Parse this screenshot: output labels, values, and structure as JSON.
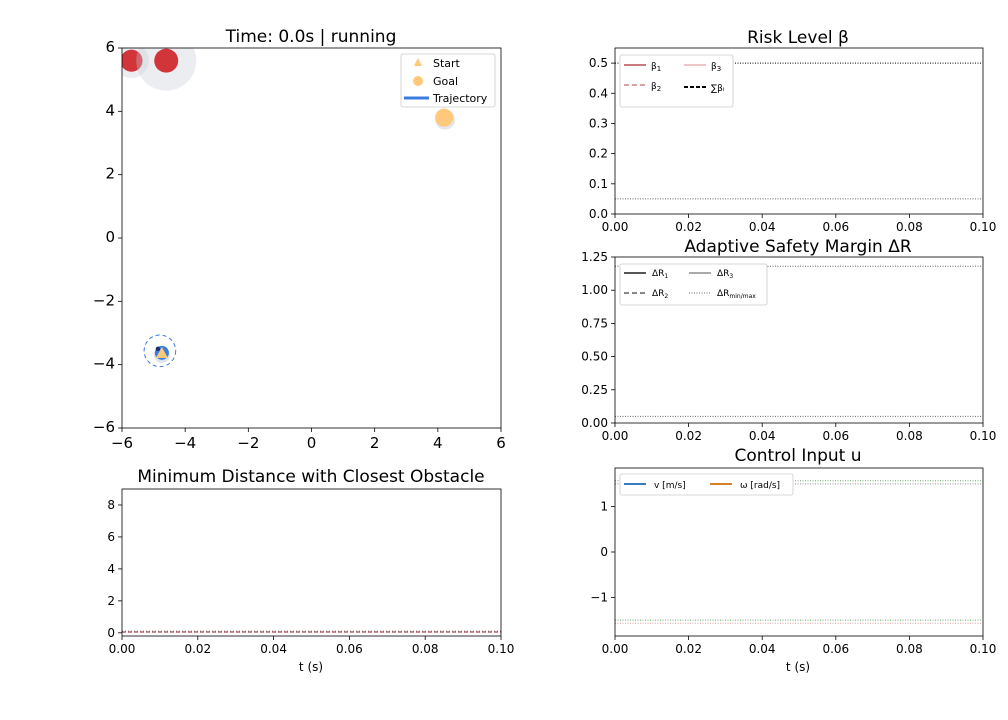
{
  "colors": {
    "beta1": "#c97a7e",
    "beta2": "#d9a3a5",
    "beta3": "#efc6c8",
    "dr1": "#555555",
    "dr2": "#888888",
    "dr3": "#aaaaaa",
    "v": "#3a7cc4",
    "omega": "#d4822a",
    "obstacle": "#d1353a",
    "obstacle_halo": "#c9ccd6",
    "goal": "#ffc87a",
    "trajectory": "#3b7ddd"
  },
  "chart_data": [
    {
      "id": "trajectory",
      "type": "scatter",
      "title": "Time: 0.0s | running",
      "xlim": [
        -6,
        6
      ],
      "ylim": [
        -6,
        6
      ],
      "xticks": [
        "−6",
        "−4",
        "−2",
        "0",
        "2",
        "4",
        "6"
      ],
      "yticks": [
        "−6",
        "−4",
        "−2",
        "0",
        "2",
        "4",
        "6"
      ],
      "legend": {
        "placement": "top-right",
        "entries": [
          "Start",
          "Goal",
          "Trajectory"
        ]
      },
      "obstacles": [
        {
          "x": -5.7,
          "y": 5.6,
          "r": 0.35,
          "halo_r": 0.55
        },
        {
          "x": -4.6,
          "y": 5.6,
          "r": 0.38,
          "halo_r": 0.95
        }
      ],
      "goal": {
        "x": 4.2,
        "y": 3.8
      },
      "start": {
        "x": -4.8,
        "y": -3.6
      },
      "robot": {
        "x": -4.8,
        "y": -3.5,
        "safety_r": 0.5
      }
    },
    {
      "id": "risk",
      "type": "line",
      "title": "Risk Level β",
      "xlim": [
        0,
        0.1
      ],
      "ylim": [
        0,
        0.55
      ],
      "xticks": [
        "0.00",
        "0.02",
        "0.04",
        "0.06",
        "0.08",
        "0.10"
      ],
      "yticks": [
        "0.0",
        "0.1",
        "0.2",
        "0.3",
        "0.4",
        "0.5"
      ],
      "legend": {
        "placement": "top-left",
        "entries": [
          "β",
          "β",
          "β",
          "∑βᵢ"
        ],
        "subscripts": [
          "1",
          "2",
          "3"
        ]
      },
      "ref_lines": [
        0.5,
        0.05
      ]
    },
    {
      "id": "margin",
      "type": "line",
      "title": "Adaptive Safety Margin ΔR",
      "xlim": [
        0,
        0.1
      ],
      "ylim": [
        0,
        1.25
      ],
      "xticks": [
        "0.00",
        "0.02",
        "0.04",
        "0.06",
        "0.08",
        "0.10"
      ],
      "yticks": [
        "0.00",
        "0.25",
        "0.50",
        "0.75",
        "1.00",
        "1.25"
      ],
      "legend": {
        "placement": "top-left",
        "entries": [
          "ΔR",
          "ΔR",
          "ΔR",
          "ΔR"
        ],
        "subscripts": [
          "1",
          "2",
          "3",
          "min/max"
        ]
      },
      "ref_lines": [
        1.18,
        0.05
      ]
    },
    {
      "id": "distance",
      "type": "line",
      "title": "Minimum Distance with Closest Obstacle",
      "xlabel": "t (s)",
      "xlim": [
        0,
        0.1
      ],
      "ylim": [
        -0.2,
        9
      ],
      "xticks": [
        "0.00",
        "0.02",
        "0.04",
        "0.06",
        "0.08",
        "0.10"
      ],
      "yticks": [
        "0",
        "2",
        "4",
        "6",
        "8"
      ],
      "ref_lines": [
        0.05
      ]
    },
    {
      "id": "control",
      "type": "line",
      "title": "Control Input u",
      "xlabel": "t (s)",
      "xlim": [
        0,
        0.1
      ],
      "ylim": [
        -1.85,
        1.85
      ],
      "xticks": [
        "0.00",
        "0.02",
        "0.04",
        "0.06",
        "0.08",
        "0.10"
      ],
      "yticks": [
        "−1",
        "0",
        "1"
      ],
      "legend": {
        "placement": "top-left",
        "entries": [
          "v [m/s]",
          "ω [rad/s]"
        ]
      },
      "ref_lines": [
        1.57,
        1.5,
        -1.5,
        -1.57
      ]
    }
  ]
}
